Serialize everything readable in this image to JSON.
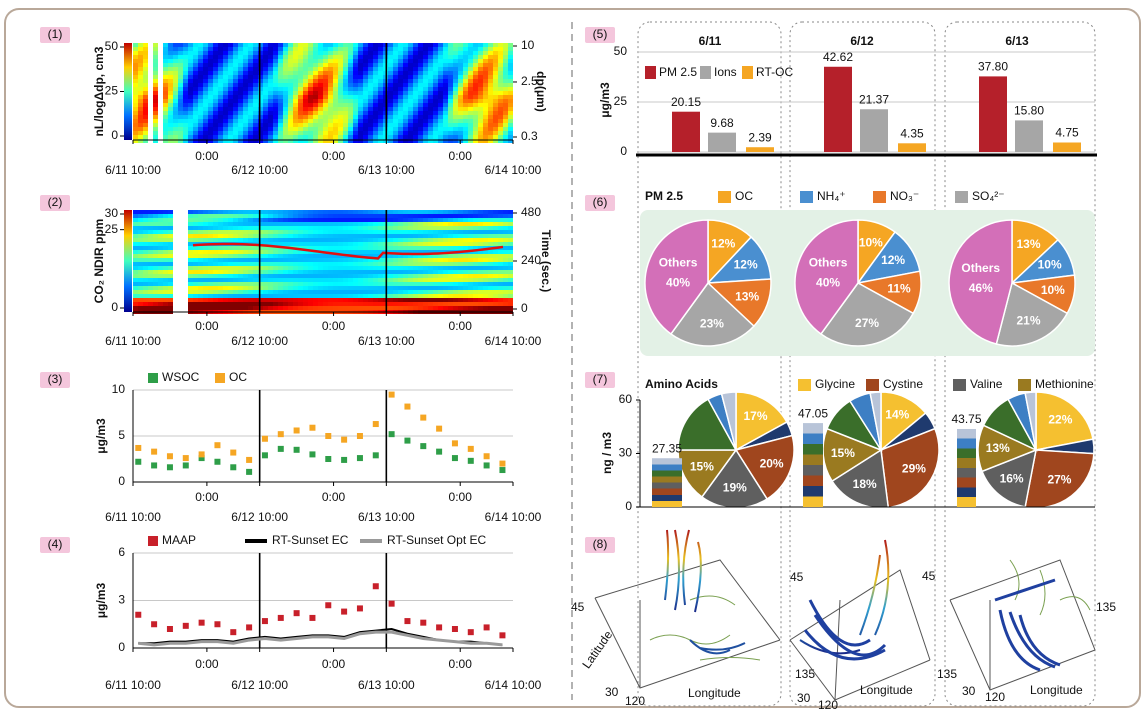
{
  "chart_data": [
    {
      "panel": "(1)",
      "type": "heatmap",
      "y_label": "nL/logΔdp, cm3",
      "ylim": [
        0,
        50
      ],
      "yticks": [
        0,
        25,
        50
      ],
      "y2_label": "dp(μm)",
      "y2lim": [
        0.3,
        10
      ],
      "y2ticks": [
        0.3,
        2.5,
        10
      ],
      "y2_log": true,
      "xlim": [
        0,
        72
      ],
      "xticks": [
        {
          "value": 0,
          "label": "6/11 10:00"
        },
        {
          "value": 14,
          "label": "0:00"
        },
        {
          "value": 24,
          "label": "6/12 10:00"
        },
        {
          "value": 38,
          "label": "0:00"
        },
        {
          "value": 48,
          "label": "6/13 10:00"
        },
        {
          "value": 62,
          "label": "0:00"
        },
        {
          "value": 72,
          "label": "6/14 10:00"
        }
      ]
    },
    {
      "panel": "(2)",
      "type": "heatmap",
      "y_label": "CO₂ NDIR ppm",
      "ylim": [
        0,
        30
      ],
      "yticks": [
        0,
        25,
        30
      ],
      "y2_label": "Time (sec.)",
      "y2lim": [
        0,
        480
      ],
      "y2ticks": [
        0,
        240,
        480
      ],
      "y2_log": false,
      "xlim": [
        0,
        72
      ],
      "xticks": [
        {
          "value": 0,
          "label": "6/11 10:00"
        },
        {
          "value": 14,
          "label": "0:00"
        },
        {
          "value": 24,
          "label": "6/12 10:00"
        },
        {
          "value": 38,
          "label": "0:00"
        },
        {
          "value": 48,
          "label": "6/13 10:00"
        },
        {
          "value": 62,
          "label": "0:00"
        },
        {
          "value": 72,
          "label": "6/14 10:00"
        }
      ]
    },
    {
      "panel": "(3)",
      "type": "scatter",
      "y_label": "μg/m3",
      "ylim": [
        0,
        10
      ],
      "yticks": [
        0,
        5,
        10
      ],
      "grid": true,
      "xlim": [
        0,
        72
      ],
      "xticks": [
        {
          "value": 0,
          "label": "6/11 10:00"
        },
        {
          "value": 14,
          "label": "0:00"
        },
        {
          "value": 24,
          "label": "6/12 10:00"
        },
        {
          "value": 38,
          "label": "0:00"
        },
        {
          "value": 48,
          "label": "6/13 10:00"
        },
        {
          "value": 62,
          "label": "0:00"
        },
        {
          "value": 72,
          "label": "6/14 10:00"
        }
      ],
      "x": [
        1,
        4,
        7,
        10,
        13,
        16,
        19,
        22,
        25,
        28,
        31,
        34,
        37,
        40,
        43,
        46,
        49,
        52,
        55,
        58,
        61,
        64,
        67,
        70
      ],
      "series": [
        {
          "name": "WSOC",
          "color": "#2e9e48",
          "values": [
            2.2,
            1.8,
            1.6,
            1.8,
            2.6,
            2.2,
            1.6,
            1.1,
            2.9,
            3.6,
            3.5,
            3.0,
            2.5,
            2.4,
            2.6,
            2.9,
            5.2,
            4.5,
            3.9,
            3.3,
            2.6,
            2.3,
            1.8,
            1.3
          ]
        },
        {
          "name": "OC",
          "color": "#f5a623",
          "values": [
            3.7,
            3.3,
            2.8,
            2.6,
            3.0,
            4.0,
            3.2,
            2.4,
            4.7,
            5.2,
            5.6,
            5.9,
            5.0,
            4.6,
            5.0,
            6.3,
            9.5,
            8.2,
            7.0,
            5.8,
            4.2,
            3.6,
            2.8,
            2.0
          ]
        }
      ]
    },
    {
      "panel": "(4)",
      "type": "line",
      "y_label": "μg/m3",
      "ylim": [
        0,
        6
      ],
      "yticks": [
        0,
        3,
        6
      ],
      "grid": true,
      "xlim": [
        0,
        72
      ],
      "xticks": [
        {
          "value": 0,
          "label": "6/11 10:00"
        },
        {
          "value": 14,
          "label": "0:00"
        },
        {
          "value": 24,
          "label": "6/12 10:00"
        },
        {
          "value": 38,
          "label": "0:00"
        },
        {
          "value": 48,
          "label": "6/13 10:00"
        },
        {
          "value": 62,
          "label": "0:00"
        },
        {
          "value": 72,
          "label": "6/14 10:00"
        }
      ],
      "x": [
        1,
        4,
        7,
        10,
        13,
        16,
        19,
        22,
        25,
        28,
        31,
        34,
        37,
        40,
        43,
        46,
        49,
        52,
        55,
        58,
        61,
        64,
        67,
        70
      ],
      "series": [
        {
          "name": "MAAP",
          "color": "#c8202a",
          "style": "markers",
          "values": [
            2.1,
            1.5,
            1.2,
            1.4,
            1.6,
            1.5,
            1.0,
            1.3,
            1.7,
            1.9,
            2.2,
            1.9,
            2.7,
            2.3,
            2.5,
            3.9,
            2.8,
            1.7,
            1.6,
            1.3,
            1.2,
            1.0,
            1.3,
            0.8
          ]
        },
        {
          "name": "RT-Sunset EC",
          "color": "#000000",
          "style": "line",
          "values": [
            0.3,
            0.3,
            0.4,
            0.4,
            0.5,
            0.5,
            0.4,
            0.6,
            0.7,
            0.6,
            0.7,
            0.8,
            0.8,
            0.7,
            1.0,
            1.1,
            1.2,
            0.9,
            0.7,
            0.5,
            0.4,
            0.4,
            0.3,
            0.2
          ]
        },
        {
          "name": "RT-Sunset Opt EC",
          "color": "#9a9a9a",
          "style": "line",
          "values": [
            0.3,
            0.2,
            0.3,
            0.3,
            0.4,
            0.4,
            0.3,
            0.5,
            0.6,
            0.5,
            0.6,
            0.7,
            0.7,
            0.6,
            0.9,
            1.0,
            1.0,
            0.8,
            0.6,
            0.5,
            0.4,
            0.3,
            0.3,
            0.2
          ]
        }
      ]
    },
    {
      "panel": "(5)",
      "type": "bar",
      "y_label": "μg/m3",
      "ylim": [
        0,
        50
      ],
      "yticks": [
        0,
        25,
        50
      ],
      "grid": true,
      "categories": [
        "6/11",
        "6/12",
        "6/13"
      ],
      "series": [
        {
          "name": "PM 2.5",
          "color": "#b5202a",
          "values": [
            20.15,
            42.62,
            37.8
          ],
          "value_labels": [
            "20.15",
            "42.62",
            "37.80"
          ]
        },
        {
          "name": "Ions",
          "color": "#a6a6a6",
          "values": [
            9.68,
            21.37,
            15.8
          ],
          "value_labels": [
            "9.68",
            "21.37",
            "15.80"
          ]
        },
        {
          "name": "RT-OC",
          "color": "#f5a623",
          "values": [
            2.39,
            4.35,
            4.75
          ],
          "value_labels": [
            "2.39",
            "4.35",
            "4.75"
          ]
        }
      ]
    },
    {
      "panel": "(6)",
      "type": "pie",
      "title": "PM 2.5",
      "categories": [
        "OC",
        "NH₄⁺",
        "NO₃⁻",
        "SO₄²⁻",
        null
      ],
      "slice_names": [
        null,
        null,
        null,
        null,
        "Others"
      ],
      "colors": [
        "#f5a623",
        "#4a8fd0",
        "#e8782a",
        "#a6a6a6",
        "#d36fb8"
      ],
      "series": [
        {
          "values": [
            12,
            12,
            13,
            23,
            40
          ],
          "value_labels": [
            "12%",
            "12%",
            "13%",
            "23%",
            "40%"
          ]
        },
        {
          "values": [
            10,
            12,
            11,
            27,
            40
          ],
          "value_labels": [
            "10%",
            "12%",
            "11%",
            "27%",
            "40%"
          ]
        },
        {
          "values": [
            13,
            10,
            10,
            21,
            46
          ],
          "value_labels": [
            "13%",
            "10%",
            "10%",
            "21%",
            "46%"
          ]
        }
      ]
    },
    {
      "panel": "(7)",
      "type": "pie",
      "title": "Amino Acids",
      "y_label": "ng / m3",
      "ylim": [
        0,
        60
      ],
      "yticks": [
        0,
        30,
        60
      ],
      "totals": [
        27.35,
        47.05,
        43.75
      ],
      "categories": [
        "Glycine",
        null,
        "Cystine",
        "Valine",
        "Methionine",
        null,
        null,
        null
      ],
      "colors": [
        "#f5c030",
        "#1f3a6e",
        "#a0461e",
        "#5f5f5f",
        "#9a7a20",
        "#3a6e2a",
        "#3d7fc4",
        "#b8c4d8"
      ],
      "series": [
        {
          "values": [
            17,
            4,
            20,
            19,
            15,
            17,
            4,
            4
          ],
          "value_labels": [
            "17%",
            null,
            "20%",
            "19%",
            "15%",
            null,
            null,
            null
          ]
        },
        {
          "values": [
            14,
            5,
            29,
            18,
            15,
            10,
            6,
            3
          ],
          "value_labels": [
            "14%",
            null,
            "29%",
            "18%",
            "15%",
            null,
            null,
            null
          ]
        },
        {
          "values": [
            22,
            4,
            27,
            16,
            13,
            10,
            5,
            3
          ],
          "value_labels": [
            "22%",
            null,
            "27%",
            "16%",
            "13%",
            null,
            null,
            null
          ]
        }
      ]
    },
    {
      "panel": "(8)",
      "type": "trajectory",
      "lat_label": "Latitude",
      "lon_label": "Longitude",
      "lat_ticks": [
        30,
        45
      ],
      "lon_ticks": [
        120,
        135
      ]
    }
  ]
}
